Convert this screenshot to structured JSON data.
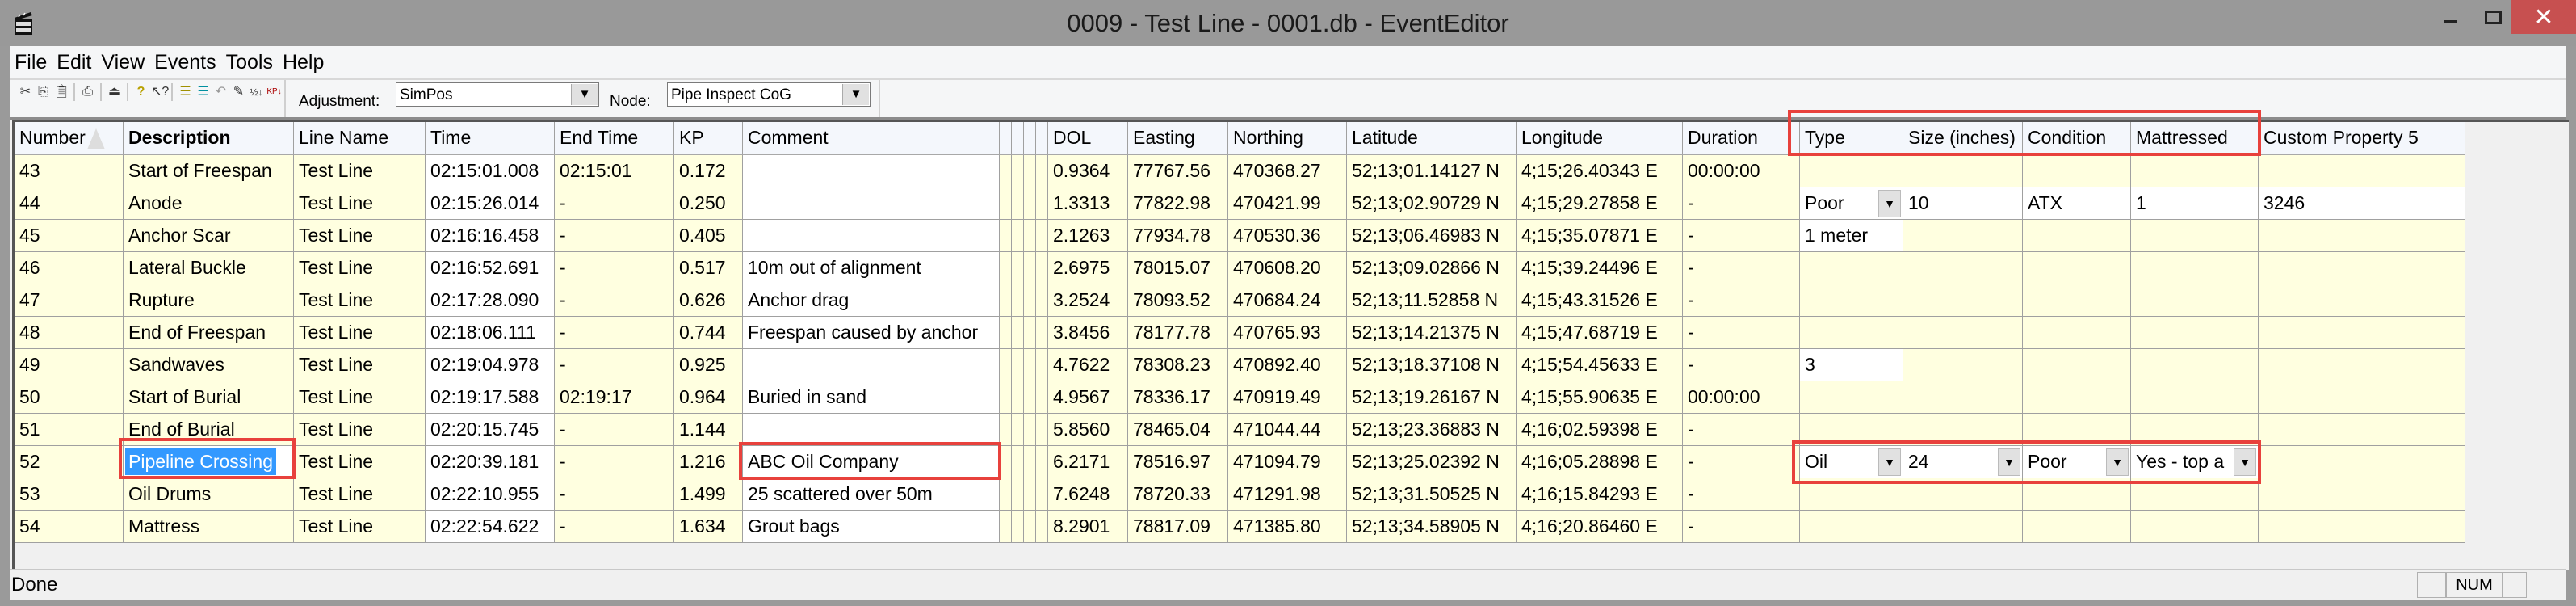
{
  "window": {
    "title": "0009 - Test Line - 0001.db - EventEditor",
    "close_color": "#c75050"
  },
  "menu": [
    "File",
    "Edit",
    "View",
    "Events",
    "Tools",
    "Help"
  ],
  "toolbar": {
    "icons": [
      "cut-icon",
      "copy-icon",
      "paste-icon",
      "print-icon",
      "properties-icon",
      "help-icon",
      "context-help-icon",
      "insert-event-icon",
      "delete-event-icon",
      "undo-icon",
      "edit-icon",
      "sort-numeric-icon",
      "sort-kp-icon"
    ],
    "adjustment_label": "Adjustment:",
    "adjustment_value": "SimPos",
    "node_label": "Node:",
    "node_value": "Pipe Inspect CoG"
  },
  "grid": {
    "columns": [
      "Number",
      "Description",
      "Line Name",
      "Time",
      "End Time",
      "KP",
      "Comment",
      "",
      "",
      "",
      "",
      "DOL",
      "Easting",
      "Northing",
      "Latitude",
      "Longitude",
      "Duration",
      "Type",
      "Size (inches)",
      "Condition",
      "Mattressed",
      "Custom Property 5"
    ],
    "sorted_column": "Number",
    "rows": [
      [
        "43",
        "Start of Freespan",
        "Test Line",
        "02:15:01.008",
        "02:15:01",
        "0.172",
        "",
        "",
        "",
        "",
        "",
        "0.9364",
        "77767.56",
        "470368.27",
        "52;13;01.14127 N",
        "4;15;26.40343 E",
        "00:00:00",
        "",
        "",
        "",
        "",
        ""
      ],
      [
        "44",
        "Anode",
        "Test Line",
        "02:15:26.014",
        "-",
        "0.250",
        "",
        "",
        "",
        "",
        "",
        "1.3313",
        "77822.98",
        "470421.99",
        "52;13;02.90729 N",
        "4;15;29.27858 E",
        "-",
        "Poor",
        "10",
        "ATX",
        "1",
        "3246"
      ],
      [
        "45",
        "Anchor Scar",
        "Test Line",
        "02:16:16.458",
        "-",
        "0.405",
        "",
        "",
        "",
        "",
        "",
        "2.1263",
        "77934.78",
        "470530.36",
        "52;13;06.46983 N",
        "4;15;35.07871 E",
        "-",
        "1 meter",
        "",
        "",
        "",
        ""
      ],
      [
        "46",
        "Lateral Buckle",
        "Test Line",
        "02:16:52.691",
        "-",
        "0.517",
        "10m out of alignment",
        "",
        "",
        "",
        "",
        "2.6975",
        "78015.07",
        "470608.20",
        "52;13;09.02866 N",
        "4;15;39.24496 E",
        "-",
        "",
        "",
        "",
        "",
        ""
      ],
      [
        "47",
        "Rupture",
        "Test Line",
        "02:17:28.090",
        "-",
        "0.626",
        "Anchor drag",
        "",
        "",
        "",
        "",
        "3.2524",
        "78093.52",
        "470684.24",
        "52;13;11.52858 N",
        "4;15;43.31526 E",
        "-",
        "",
        "",
        "",
        "",
        ""
      ],
      [
        "48",
        "End of Freespan",
        "Test Line",
        "02:18:06.111",
        "-",
        "0.744",
        "Freespan caused by anchor",
        "",
        "",
        "",
        "",
        "3.8456",
        "78177.78",
        "470765.93",
        "52;13;14.21375 N",
        "4;15;47.68719 E",
        "-",
        "",
        "",
        "",
        "",
        ""
      ],
      [
        "49",
        "Sandwaves",
        "Test Line",
        "02:19:04.978",
        "-",
        "0.925",
        "",
        "",
        "",
        "",
        "",
        "4.7622",
        "78308.23",
        "470892.40",
        "52;13;18.37108 N",
        "4;15;54.45633 E",
        "-",
        "3",
        "",
        "",
        "",
        ""
      ],
      [
        "50",
        "Start of Burial",
        "Test Line",
        "02:19:17.588",
        "02:19:17",
        "0.964",
        "Buried in sand",
        "",
        "",
        "",
        "",
        "4.9567",
        "78336.17",
        "470919.49",
        "52;13;19.26167 N",
        "4;15;55.90635 E",
        "00:00:00",
        "",
        "",
        "",
        "",
        ""
      ],
      [
        "51",
        "End of Burial",
        "Test Line",
        "02:20:15.745",
        "-",
        "1.144",
        "",
        "",
        "",
        "",
        "",
        "5.8560",
        "78465.04",
        "471044.44",
        "52;13;23.36883 N",
        "4;16;02.59398 E",
        "-",
        "",
        "",
        "",
        "",
        ""
      ],
      [
        "52",
        "Pipeline Crossing",
        "Test Line",
        "02:20:39.181",
        "-",
        "1.216",
        "ABC Oil Company",
        "",
        "",
        "",
        "",
        "6.2171",
        "78516.97",
        "471094.79",
        "52;13;25.02392 N",
        "4;16;05.28898 E",
        "-",
        "Oil",
        "24",
        "Poor",
        "Yes - top a",
        ""
      ],
      [
        "53",
        "Oil Drums",
        "Test Line",
        "02:22:10.955",
        "-",
        "1.499",
        "25 scattered over 50m",
        "",
        "",
        "",
        "",
        "7.6248",
        "78720.33",
        "471291.98",
        "52;13;31.50525 N",
        "4;16;15.84293 E",
        "-",
        "",
        "",
        "",
        "",
        ""
      ],
      [
        "54",
        "Mattress",
        "Test Line",
        "02:22:54.622",
        "-",
        "1.634",
        "Grout bags",
        "",
        "",
        "",
        "",
        "8.2901",
        "78817.09",
        "471385.80",
        "52;13;34.58905 N",
        "4;16;20.86460 E",
        "-",
        "",
        "",
        "",
        "",
        ""
      ]
    ],
    "selected_cell": {
      "row": "52",
      "column": "Description"
    },
    "dropdown_cells": [
      {
        "row": "44",
        "column": "Type"
      },
      {
        "row": "52",
        "column": "Type"
      },
      {
        "row": "52",
        "column": "Size (inches)"
      },
      {
        "row": "52",
        "column": "Condition"
      },
      {
        "row": "52",
        "column": "Mattressed"
      }
    ],
    "cell_bg": "#ffffe0",
    "selection_color": "#3399ff",
    "highlight_color": "#e8413c"
  },
  "status": {
    "text": "Done",
    "num": "NUM"
  }
}
